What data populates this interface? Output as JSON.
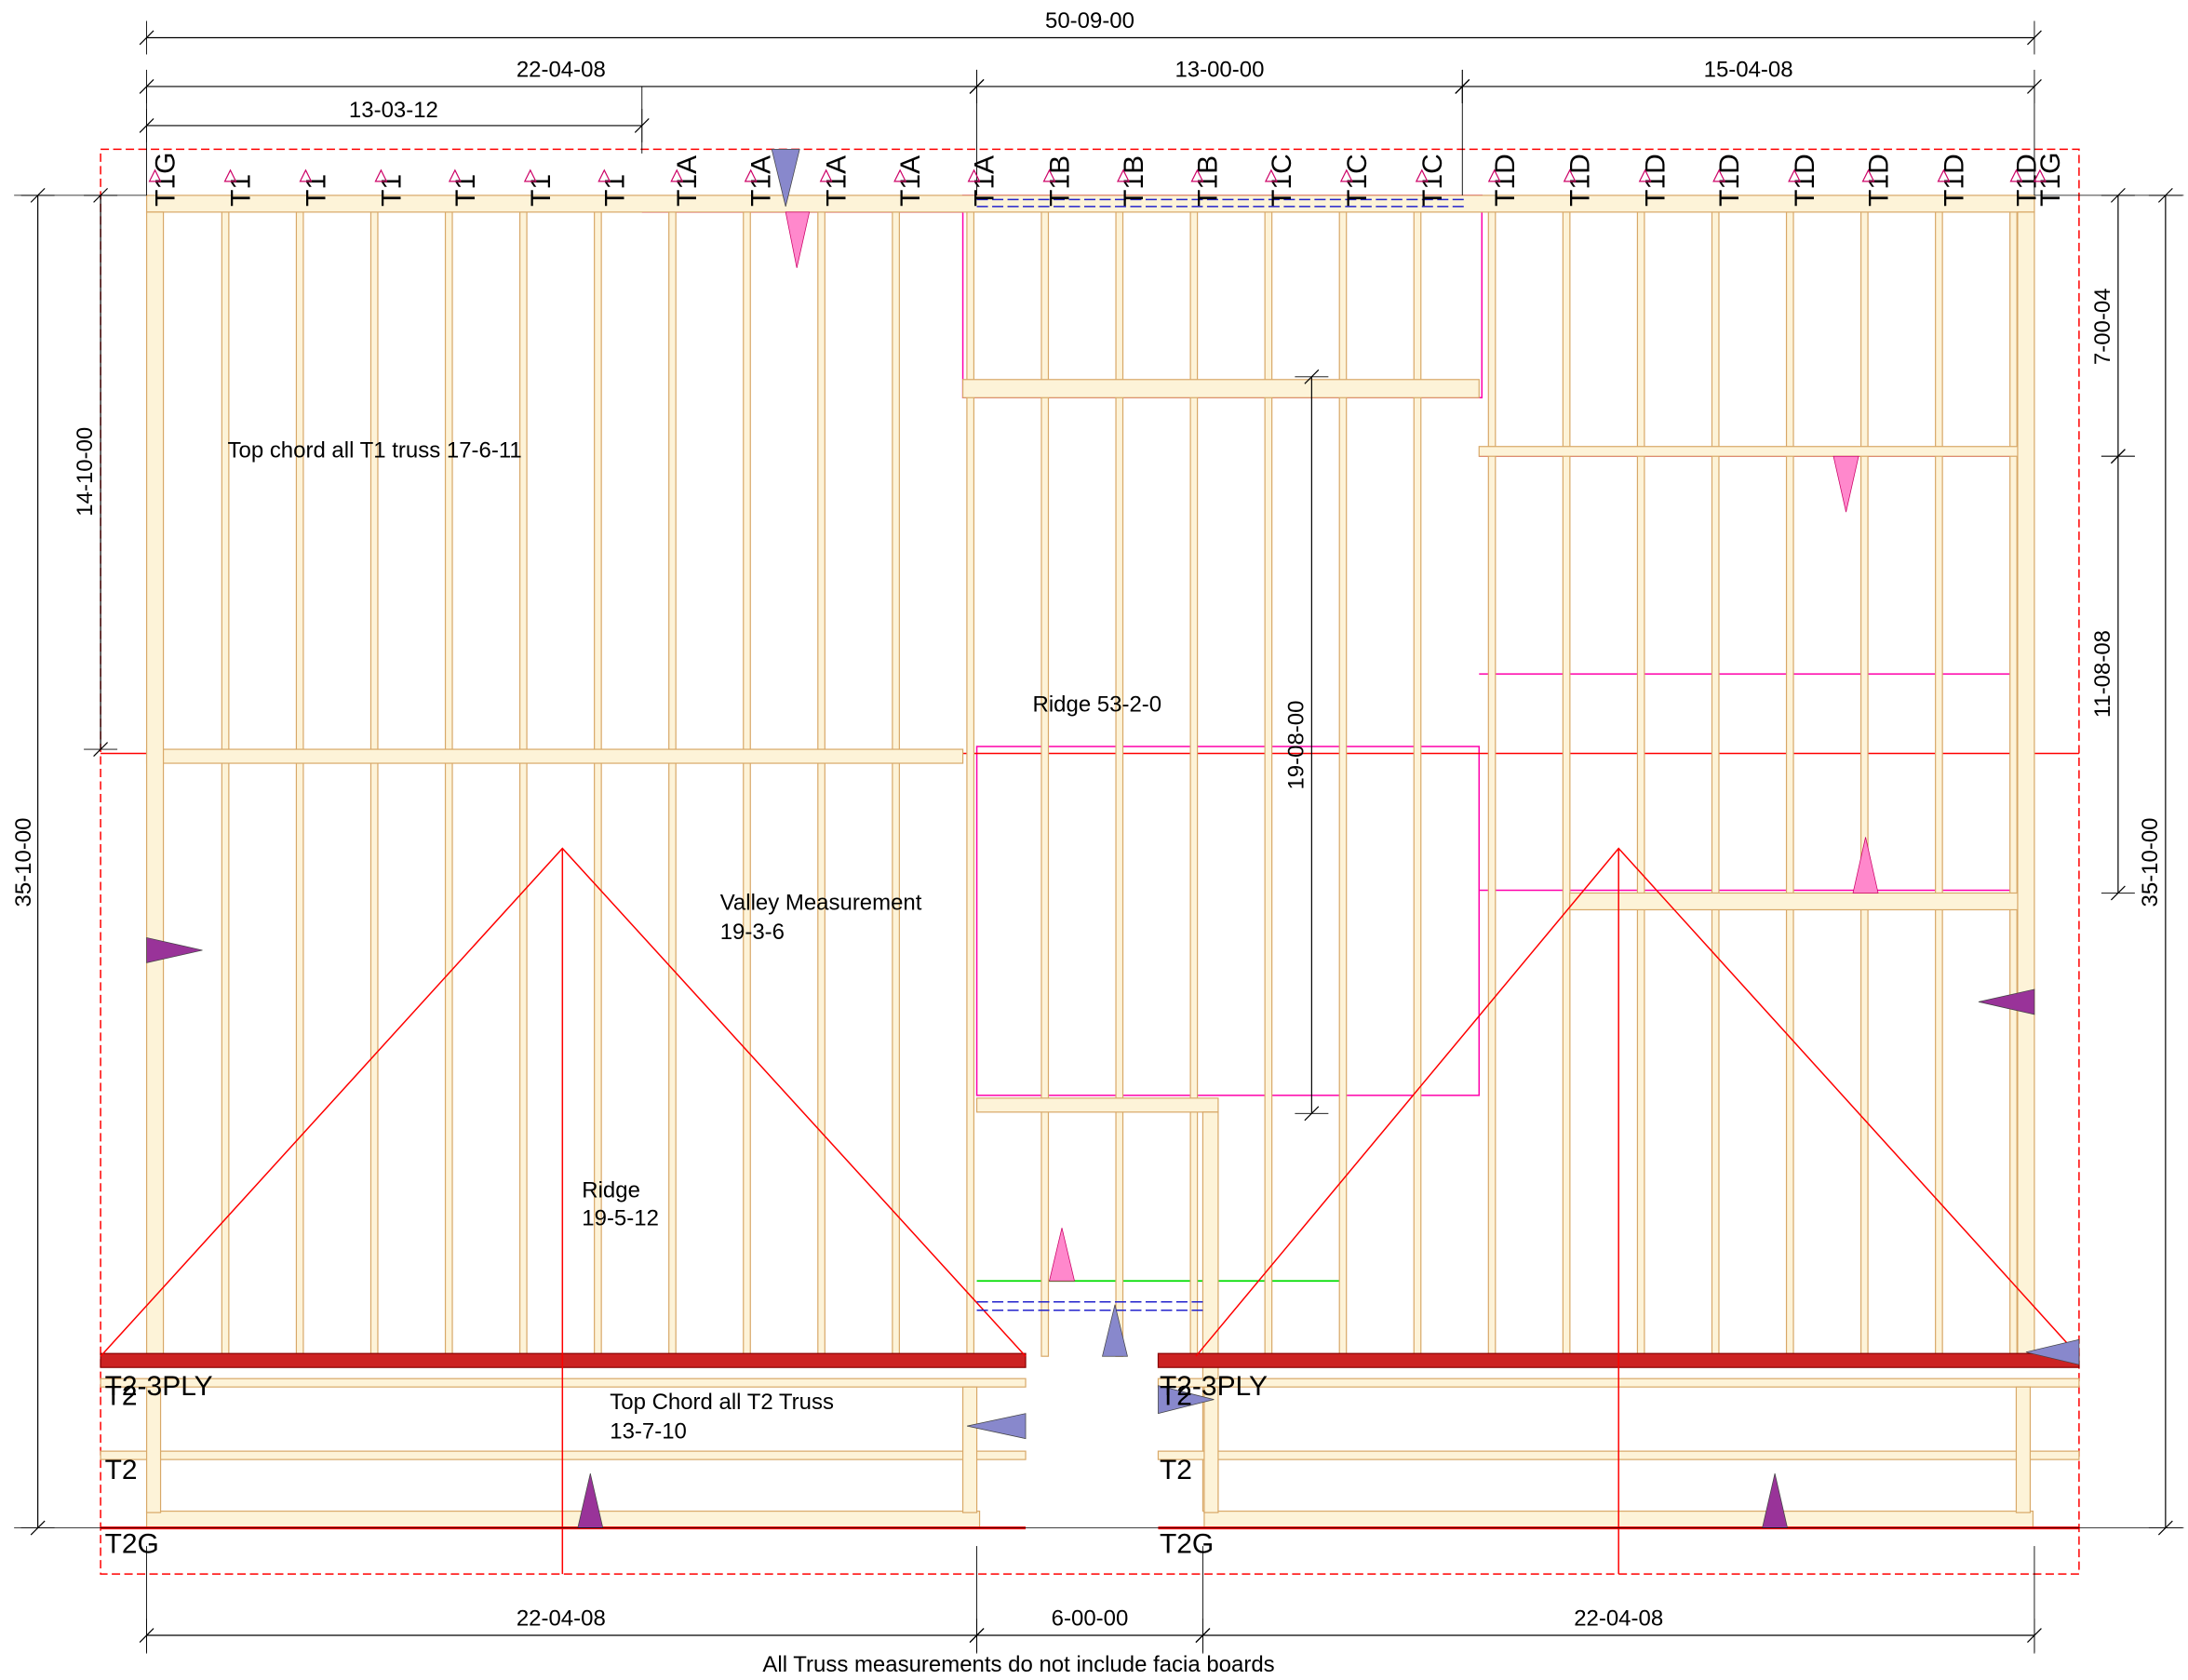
{
  "dimensions": {
    "top": [
      "50-09-00",
      "22-04-08",
      "13-00-00",
      "15-04-08",
      "13-03-12"
    ],
    "bottom": [
      "22-04-08",
      "6-00-00",
      "22-04-08"
    ],
    "left": [
      "35-10-00",
      "14-10-00"
    ],
    "right": [
      "7-00-04",
      "11-08-08",
      "35-10-00"
    ],
    "center": "19-08-00"
  },
  "truss_labels_top": [
    {
      "label": "T1G",
      "color": "#0000cc"
    },
    {
      "label": "T1",
      "color": "#0000cc"
    },
    {
      "label": "T1",
      "color": "#0000cc"
    },
    {
      "label": "T1",
      "color": "#0000cc"
    },
    {
      "label": "T1",
      "color": "#0000cc"
    },
    {
      "label": "T1",
      "color": "#0000cc"
    },
    {
      "label": "T1",
      "color": "#0000cc"
    },
    {
      "label": "T1A",
      "color": "#0000cc"
    },
    {
      "label": "T1A",
      "color": "#0000cc"
    },
    {
      "label": "T1A",
      "color": "#0000cc"
    },
    {
      "label": "T1A",
      "color": "#0000cc"
    },
    {
      "label": "T1A",
      "color": "#0000cc"
    },
    {
      "label": "T1B",
      "color": "#000000"
    },
    {
      "label": "T1B",
      "color": "#000000"
    },
    {
      "label": "T1B",
      "color": "#0000cc"
    },
    {
      "label": "T1C",
      "color": "#000000"
    },
    {
      "label": "T1C",
      "color": "#000000"
    },
    {
      "label": "T1C",
      "color": "#000000"
    },
    {
      "label": "T1D",
      "color": "#0000cc"
    },
    {
      "label": "T1D",
      "color": "#0000cc"
    },
    {
      "label": "T1D",
      "color": "#0000cc"
    },
    {
      "label": "T1D",
      "color": "#0000cc"
    },
    {
      "label": "T1D",
      "color": "#0000cc"
    },
    {
      "label": "T1D",
      "color": "#0000cc"
    },
    {
      "label": "T1D",
      "color": "#0000cc"
    },
    {
      "label": "T1D",
      "color": "#0000cc"
    },
    {
      "label": "T1G",
      "color": "#0000cc"
    }
  ],
  "truss_labels_bottom_left": [
    {
      "label": "T2-3PLY",
      "color": "#0000cc"
    },
    {
      "label": "T2",
      "color": "#000000"
    },
    {
      "label": "T2",
      "color": "#000000"
    },
    {
      "label": "T2G",
      "color": "#0000cc"
    }
  ],
  "truss_labels_bottom_right": [
    {
      "label": "T2-3PLY",
      "color": "#0000cc"
    },
    {
      "label": "T2",
      "color": "#000000"
    },
    {
      "label": "T2",
      "color": "#000000"
    },
    {
      "label": "T2G",
      "color": "#0000cc"
    }
  ],
  "notes": {
    "t1_top_chord": "Top chord all T1 truss 17-6-11",
    "ridge_main": "Ridge 53-2-0",
    "valley": [
      "Valley Measurement",
      "19-3-6"
    ],
    "ridge_left": [
      "Ridge",
      "19-5-12"
    ],
    "t2_top_chord": [
      "Top Chord all T2 Truss",
      "13-7-10"
    ]
  },
  "footer": "All Truss measurements do not include facia boards"
}
